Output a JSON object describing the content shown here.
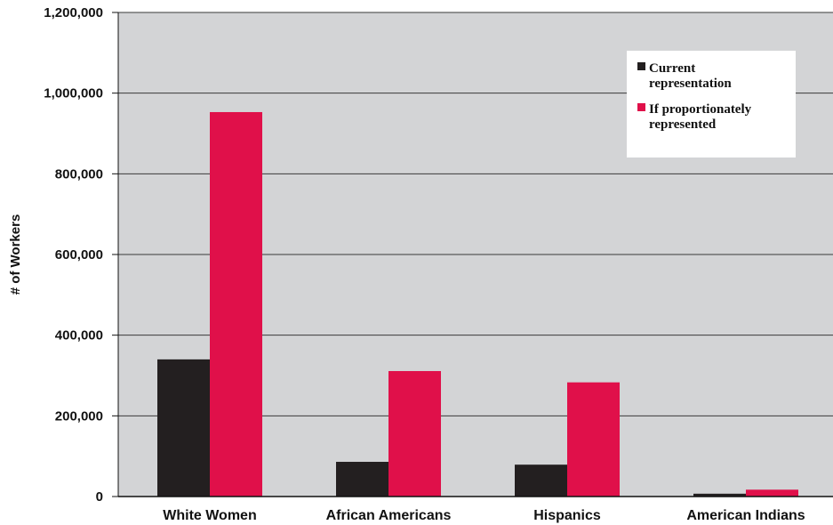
{
  "chart_data": {
    "type": "bar",
    "categories": [
      "White Women",
      "African Americans",
      "Hispanics",
      "American Indians"
    ],
    "series": [
      {
        "name": "Current representation",
        "values": [
          340000,
          86000,
          79000,
          7000
        ],
        "color": "#231f20"
      },
      {
        "name": "If proportionately represented",
        "values": [
          953000,
          311000,
          283000,
          17000
        ],
        "color": "#e0104a"
      }
    ],
    "y_ticks": [
      "0",
      "200,000",
      "400,000",
      "600,000",
      "800,000",
      "1,000,000",
      "1,200,000"
    ],
    "ylabel": "# of Workers",
    "ylim": [
      0,
      1200000
    ],
    "grid": true,
    "legend_position": "top-right",
    "colors": {
      "plot_background": "#d3d4d6",
      "grid": "#3a3a3a",
      "legend_background": "#ffffff"
    }
  }
}
